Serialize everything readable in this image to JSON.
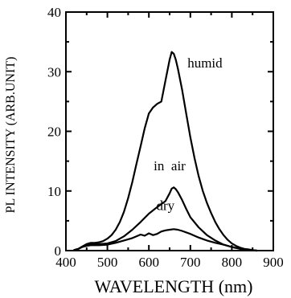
{
  "chart_data": {
    "type": "line",
    "title": "",
    "xlabel": "WAVELENGTH (nm)",
    "ylabel": "PL  INTENSITY (ARB.UNIT)",
    "xlim": [
      400,
      900
    ],
    "ylim": [
      0,
      40
    ],
    "x_ticks": [
      "400",
      "500",
      "600",
      "700",
      "800",
      "900"
    ],
    "y_ticks": [
      "0",
      "10",
      "20",
      "30",
      "40"
    ],
    "grid": false,
    "series": [
      {
        "name": "humid",
        "x": [
          420,
          430,
          440,
          450,
          460,
          470,
          480,
          490,
          500,
          510,
          520,
          530,
          540,
          550,
          560,
          570,
          580,
          590,
          600,
          610,
          620,
          630,
          640,
          650,
          655,
          660,
          665,
          670,
          680,
          690,
          700,
          710,
          720,
          730,
          740,
          750,
          760,
          770,
          780,
          790,
          800,
          810,
          820,
          830,
          840,
          850,
          860
        ],
        "y": [
          0.1,
          0.3,
          0.7,
          1.1,
          1.3,
          1.3,
          1.4,
          1.6,
          2.0,
          2.6,
          3.5,
          4.8,
          6.5,
          8.8,
          11.5,
          14.5,
          17.5,
          20.5,
          23.0,
          24.0,
          24.6,
          25.0,
          28.5,
          32.0,
          33.3,
          33.0,
          32.0,
          30.5,
          27.0,
          23.0,
          19.0,
          15.5,
          12.5,
          10.0,
          8.0,
          6.3,
          4.8,
          3.6,
          2.6,
          1.8,
          1.2,
          0.8,
          0.5,
          0.3,
          0.2,
          0.1,
          0.0
        ]
      },
      {
        "name": "in  air",
        "x": [
          420,
          430,
          440,
          450,
          460,
          480,
          500,
          520,
          540,
          560,
          580,
          600,
          620,
          640,
          650,
          655,
          660,
          665,
          670,
          680,
          690,
          700,
          720,
          740,
          760,
          780,
          800,
          820,
          840,
          860
        ],
        "y": [
          0.1,
          0.3,
          0.7,
          1.0,
          1.1,
          1.1,
          1.2,
          1.6,
          2.4,
          3.5,
          4.8,
          6.2,
          7.3,
          8.3,
          9.6,
          10.4,
          10.6,
          10.3,
          9.8,
          8.5,
          7.0,
          5.6,
          3.9,
          2.6,
          1.7,
          1.0,
          0.6,
          0.3,
          0.1,
          0.0
        ]
      },
      {
        "name": "dry",
        "x": [
          420,
          430,
          440,
          450,
          460,
          480,
          500,
          520,
          540,
          560,
          570,
          580,
          590,
          600,
          610,
          620,
          630,
          640,
          650,
          660,
          670,
          680,
          700,
          720,
          740,
          760,
          780,
          800,
          820,
          840,
          860
        ],
        "y": [
          0.1,
          0.3,
          0.6,
          0.8,
          0.9,
          0.9,
          1.0,
          1.3,
          1.7,
          2.1,
          2.4,
          2.7,
          2.5,
          2.9,
          2.6,
          2.8,
          3.2,
          3.4,
          3.5,
          3.6,
          3.5,
          3.3,
          2.8,
          2.2,
          1.7,
          1.3,
          1.0,
          0.6,
          0.3,
          0.1,
          0.0
        ]
      }
    ]
  }
}
